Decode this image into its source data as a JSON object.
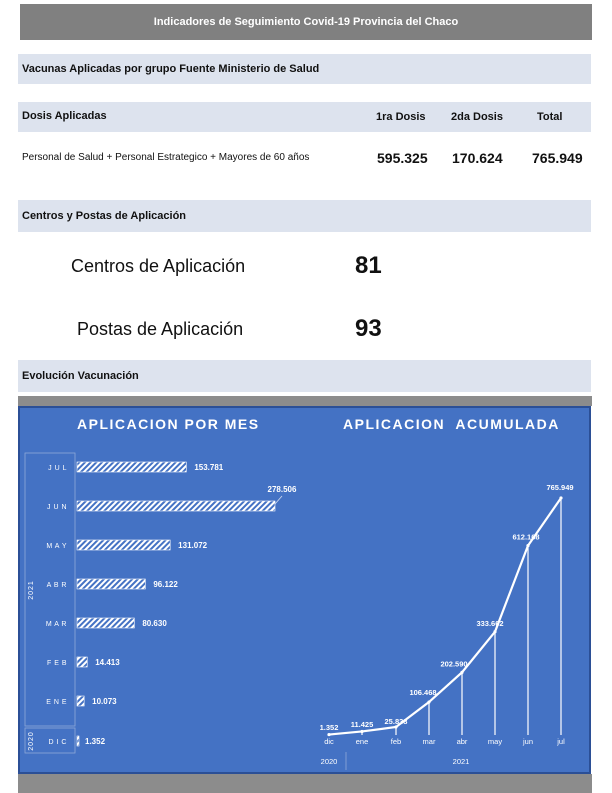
{
  "header": {
    "title": "Indicadores de Seguimiento Covid-19 Provincia del Chaco"
  },
  "vacunas": {
    "title": "Vacunas Aplicadas por grupo Fuente Ministerio de Salud"
  },
  "dosis": {
    "title": "Dosis Aplicadas",
    "col1": "1ra Dosis",
    "col2": "2da Dosis",
    "col3": "Total",
    "row_label": "Personal de Salud + Personal Estrategico + Mayores de 60 años",
    "primera": "595.325",
    "segunda": "170.624",
    "total": "765.949"
  },
  "centros": {
    "title": "Centros y Postas de Aplicación",
    "centros_label": "Centros de Aplicación",
    "centros_value": "81",
    "postas_label": "Postas de Aplicación",
    "postas_value": "93"
  },
  "evolucion": {
    "title": "Evolución Vacunación"
  },
  "chart_data": [
    {
      "type": "bar",
      "title": "APLICACION POR MES",
      "categories": [
        "DIC",
        "ENE",
        "FEB",
        "MAR",
        "ABR",
        "MAY",
        "JUN",
        "JUL"
      ],
      "values": [
        1352,
        10073,
        14413,
        80630,
        96122,
        131072,
        278506,
        153781
      ],
      "value_labels": [
        "1.352",
        "10.073",
        "14.413",
        "80.630",
        "96.122",
        "131.072",
        "278.506",
        "153.781"
      ],
      "year_groups": [
        {
          "label": "2020",
          "categories": [
            "DIC"
          ]
        },
        {
          "label": "2021",
          "categories": [
            "ENE",
            "FEB",
            "MAR",
            "ABR",
            "MAY",
            "JUN",
            "JUL"
          ]
        }
      ],
      "orientation": "horizontal",
      "xlim": [
        0,
        300000
      ]
    },
    {
      "type": "line",
      "title": "APLICACION  ACUMULADA",
      "categories": [
        "dic",
        "ene",
        "feb",
        "mar",
        "abr",
        "may",
        "jun",
        "jul"
      ],
      "values": [
        1352,
        11425,
        25838,
        106468,
        202590,
        333662,
        612168,
        765949
      ],
      "value_labels": [
        "1.352",
        "11.425",
        "25.838",
        "106.468",
        "202.590",
        "333.662",
        "612.168",
        "765.949"
      ],
      "year_groups": [
        {
          "label": "2020",
          "categories": [
            "dic"
          ]
        },
        {
          "label": "2021",
          "categories": [
            "ene",
            "feb",
            "mar",
            "abr",
            "may",
            "jun",
            "jul"
          ]
        }
      ],
      "ylim": [
        0,
        800000
      ]
    }
  ],
  "colors": {
    "panel": "#4472c4",
    "bar": "#ffffff",
    "header": "#808080",
    "band": "#dde3ee"
  }
}
